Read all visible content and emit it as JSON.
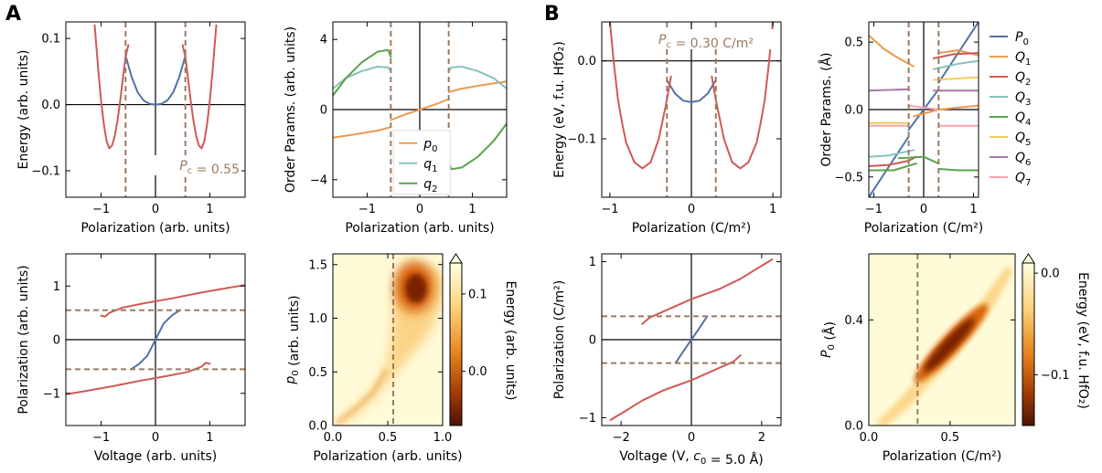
{
  "panel_letters": [
    "A",
    "B"
  ],
  "colors": {
    "blue": "#4f73a4",
    "red": "#cf5a55",
    "orange": "#ec9a4d",
    "teal": "#86c2bc",
    "green": "#5ba14e",
    "yellow": "#f4cd59",
    "purple": "#a879a6",
    "pink": "#f4a3ad",
    "dashed": "#9b7b63"
  },
  "chart_data": [
    {
      "id": "A1",
      "type": "line",
      "xlabel": "Polarization (arb. units)",
      "ylabel": "Energy (arb. units)",
      "xlim": [
        -1.65,
        1.65
      ],
      "ylim": [
        -0.14,
        0.125
      ],
      "xticks": [
        -1,
        0,
        1
      ],
      "xticklabels": [
        "−1",
        "0",
        "1"
      ],
      "yticks": [
        -0.1,
        0,
        0.1
      ],
      "yticklabels": [
        "−0.1",
        "0.0",
        "0.1"
      ],
      "vlines": [
        -0.55,
        0.55
      ],
      "hline": 0,
      "vline": 0,
      "annotation": "P_c = 0.55",
      "series": [
        {
          "color": "blue",
          "x": [
            -0.55,
            -0.44,
            -0.33,
            -0.22,
            -0.11,
            0,
            0.11,
            0.22,
            0.33,
            0.44,
            0.55
          ],
          "y": [
            0.074,
            0.042,
            0.019,
            0.0065,
            0.0012,
            0,
            0.0012,
            0.0065,
            0.019,
            0.042,
            0.074
          ]
        },
        {
          "color": "red",
          "x": [
            -1.12,
            -1.05,
            -1.0,
            -0.95,
            -0.9,
            -0.85,
            -0.8,
            -0.75,
            -0.7,
            -0.65,
            -0.6,
            -0.55,
            -0.5
          ],
          "y": [
            0.12,
            0.05,
            0.005,
            -0.03,
            -0.055,
            -0.066,
            -0.062,
            -0.047,
            -0.025,
            0.005,
            0.04,
            0.072,
            0.09
          ]
        },
        {
          "color": "red",
          "x": [
            0.5,
            0.55,
            0.6,
            0.65,
            0.7,
            0.75,
            0.8,
            0.85,
            0.9,
            0.95,
            1.0,
            1.05,
            1.12
          ],
          "y": [
            0.09,
            0.072,
            0.04,
            0.005,
            -0.025,
            -0.047,
            -0.062,
            -0.066,
            -0.055,
            -0.03,
            0.005,
            0.05,
            0.12
          ]
        }
      ]
    },
    {
      "id": "A2",
      "type": "line",
      "xlabel": "Polarization (arb. units)",
      "ylabel": "Order Params. (arb. units)",
      "xlim": [
        -1.65,
        1.65
      ],
      "ylim": [
        -5,
        5
      ],
      "xticks": [
        -1,
        0,
        1
      ],
      "xticklabels": [
        "−1",
        "0",
        "1"
      ],
      "yticks": [
        -4,
        0,
        4
      ],
      "yticklabels": [
        "−4",
        "0",
        "4"
      ],
      "vlines": [
        -0.55,
        0.55
      ],
      "hline": 0,
      "vline": 0,
      "legend": [
        {
          "label": "p_0",
          "color": "orange"
        },
        {
          "label": "q_1",
          "color": "teal"
        },
        {
          "label": "q_2",
          "color": "green"
        }
      ],
      "series": [
        {
          "color": "orange",
          "x": [
            -1.65,
            -1.2,
            -0.8,
            -0.55
          ],
          "y": [
            -1.6,
            -1.4,
            -1.2,
            -1.0
          ]
        },
        {
          "color": "orange",
          "x": [
            -0.55,
            -0.3,
            0,
            0.3,
            0.55
          ],
          "y": [
            -0.6,
            -0.3,
            0,
            0.3,
            0.6
          ]
        },
        {
          "color": "orange",
          "x": [
            0.55,
            0.8,
            1.2,
            1.65
          ],
          "y": [
            1.0,
            1.2,
            1.4,
            1.6
          ]
        },
        {
          "color": "teal",
          "x": [
            -1.65,
            -1.4,
            -1.1,
            -0.8,
            -0.6,
            -0.55
          ],
          "y": [
            1.2,
            1.8,
            2.2,
            2.45,
            2.4,
            2.2
          ]
        },
        {
          "color": "teal",
          "x": [
            0.55,
            0.6,
            0.8,
            1.1,
            1.4,
            1.65
          ],
          "y": [
            2.2,
            2.4,
            2.45,
            2.2,
            1.8,
            1.2
          ]
        },
        {
          "color": "green",
          "x": [
            -1.65,
            -1.4,
            -1.1,
            -0.8,
            -0.6,
            -0.55
          ],
          "y": [
            0.8,
            1.8,
            2.7,
            3.3,
            3.4,
            3.0
          ]
        },
        {
          "color": "green",
          "x": [
            0.55,
            0.6,
            0.8,
            1.1,
            1.4,
            1.65
          ],
          "y": [
            -3.0,
            -3.4,
            -3.3,
            -2.7,
            -1.8,
            -0.8
          ]
        }
      ]
    },
    {
      "id": "A3",
      "type": "line",
      "xlabel": "Voltage (arb. units)",
      "ylabel": "Polarization (arb. units)",
      "xlim": [
        -1.65,
        1.65
      ],
      "ylim": [
        -1.6,
        1.6
      ],
      "xticks": [
        -1,
        0,
        1
      ],
      "xticklabels": [
        "−1",
        "0",
        "1"
      ],
      "yticks": [
        -1,
        0,
        1
      ],
      "yticklabels": [
        "−1",
        "0",
        "1"
      ],
      "hlines": [
        -0.55,
        0.55
      ],
      "hline": 0,
      "vline": 0,
      "series": [
        {
          "color": "blue",
          "x": [
            -0.45,
            -0.3,
            -0.15,
            0,
            0.15,
            0.3,
            0.45
          ],
          "y": [
            -0.55,
            -0.45,
            -0.3,
            0,
            0.3,
            0.45,
            0.55
          ]
        },
        {
          "color": "red",
          "x": [
            -1.0,
            -0.93,
            -0.85,
            -0.6,
            -0.2,
            0.3,
            0.8,
            1.3,
            1.65
          ],
          "y": [
            0.45,
            0.43,
            0.5,
            0.6,
            0.68,
            0.77,
            0.87,
            0.96,
            1.02
          ]
        },
        {
          "color": "red",
          "x": [
            -1.65,
            -1.3,
            -0.8,
            -0.3,
            0.2,
            0.6,
            0.85,
            0.93,
            1.0
          ],
          "y": [
            -1.02,
            -0.96,
            -0.87,
            -0.77,
            -0.68,
            -0.6,
            -0.5,
            -0.43,
            -0.45
          ]
        }
      ]
    },
    {
      "id": "A4",
      "type": "heatmap",
      "xlabel": "Polarization (arb. units)",
      "ylabel": "p_0 (arb. units)",
      "xlim": [
        0,
        1
      ],
      "ylim": [
        0,
        1.6
      ],
      "xticks": [
        0,
        0.5,
        1
      ],
      "xticklabels": [
        "0.0",
        "0.5",
        "1.0"
      ],
      "yticks": [
        0,
        0.5,
        1.0,
        1.5
      ],
      "yticklabels": [
        "0.0",
        "0.5",
        "1.0",
        "1.5"
      ],
      "vlines": [
        0.55
      ],
      "colorbar_label": "Energy (arb. units)",
      "colorbar_ticks": [
        0.1,
        0.0
      ],
      "colorbar_ticklabels": [
        "0.1",
        "0.0"
      ],
      "colorbar_range": [
        -0.07,
        0.14
      ]
    },
    {
      "id": "B1",
      "type": "line",
      "xlabel": "Polarization (C/m²)",
      "ylabel": "Energy (eV, f.u. HfO₂)",
      "xlim": [
        -1.1,
        1.1
      ],
      "ylim": [
        -0.175,
        0.05
      ],
      "xticks": [
        -1,
        0,
        1
      ],
      "xticklabels": [
        "−1",
        "0",
        "1"
      ],
      "yticks": [
        -0.1,
        0.0
      ],
      "yticklabels": [
        "−0.1",
        "0.0"
      ],
      "vlines": [
        -0.3,
        0.3
      ],
      "hline": 0,
      "vline": 0,
      "annotation": "P_c = 0.30 C/m²",
      "series": [
        {
          "color": "blue",
          "x": [
            -0.3,
            -0.2,
            -0.1,
            0,
            0.1,
            0.2,
            0.3
          ],
          "y": [
            -0.025,
            -0.042,
            -0.051,
            -0.053,
            -0.051,
            -0.042,
            -0.025
          ]
        },
        {
          "color": "red",
          "x": [
            -1.0,
            -0.95,
            -0.9,
            -0.85,
            -0.8,
            -0.7,
            -0.6,
            -0.5,
            -0.4,
            -0.3,
            -0.25
          ],
          "y": [
            0.05,
            -0.005,
            -0.05,
            -0.08,
            -0.105,
            -0.13,
            -0.138,
            -0.13,
            -0.1,
            -0.05,
            -0.02
          ]
        },
        {
          "color": "red",
          "x": [
            0.25,
            0.3,
            0.4,
            0.5,
            0.6,
            0.7,
            0.8,
            0.85,
            0.9,
            0.95,
            1.0
          ],
          "y": [
            -0.02,
            -0.05,
            -0.1,
            -0.13,
            -0.138,
            -0.13,
            -0.105,
            -0.08,
            -0.05,
            -0.005,
            0.05
          ]
        }
      ]
    },
    {
      "id": "B2",
      "type": "line",
      "xlabel": "Polarization (C/m²)",
      "ylabel": "Order Params. (Å)",
      "xlim": [
        -1.1,
        1.1
      ],
      "ylim": [
        -0.65,
        0.65
      ],
      "xticks": [
        -1,
        0,
        1
      ],
      "xticklabels": [
        "−1",
        "0",
        "1"
      ],
      "yticks": [
        -0.5,
        0.0,
        0.5
      ],
      "yticklabels": [
        "−0.5",
        "0.0",
        "0.5"
      ],
      "vlines": [
        -0.3,
        0.3
      ],
      "hline": 0,
      "vline": 0,
      "legend": [
        {
          "label": "P_0",
          "color": "blue"
        },
        {
          "label": "Q_1",
          "color": "orange"
        },
        {
          "label": "Q_2",
          "color": "red"
        },
        {
          "label": "Q_3",
          "color": "teal"
        },
        {
          "label": "Q_4",
          "color": "green"
        },
        {
          "label": "Q_5",
          "color": "yellow"
        },
        {
          "label": "Q_6",
          "color": "purple"
        },
        {
          "label": "Q_7",
          "color": "pink"
        }
      ],
      "series": [
        {
          "color": "blue",
          "x": [
            -1.1,
            -0.3
          ],
          "y": [
            -0.65,
            -0.2
          ]
        },
        {
          "color": "blue",
          "x": [
            -0.3,
            0,
            0.3
          ],
          "y": [
            -0.15,
            0,
            0.15
          ]
        },
        {
          "color": "blue",
          "x": [
            0.3,
            1.1
          ],
          "y": [
            0.2,
            0.65
          ]
        },
        {
          "color": "orange",
          "x": [
            -1.1,
            -0.8,
            -0.5,
            -0.2
          ],
          "y": [
            0.55,
            0.45,
            0.38,
            0.32
          ]
        },
        {
          "color": "orange",
          "x": [
            -0.2,
            0.3,
            1.1
          ],
          "y": [
            -0.05,
            0.0,
            0.03
          ]
        },
        {
          "color": "orange",
          "x": [
            0.3,
            0.7,
            1.1
          ],
          "y": [
            0.42,
            0.44,
            0.4
          ]
        },
        {
          "color": "red",
          "x": [
            -1.1,
            -0.7,
            -0.3,
            -0.15
          ],
          "y": [
            -0.42,
            -0.41,
            -0.38,
            -0.35
          ]
        },
        {
          "color": "red",
          "x": [
            0.2,
            0.6,
            1.1
          ],
          "y": [
            0.38,
            0.41,
            0.42
          ]
        },
        {
          "color": "teal",
          "x": [
            -1.1,
            -0.7,
            -0.2
          ],
          "y": [
            -0.35,
            -0.34,
            -0.3
          ]
        },
        {
          "color": "teal",
          "x": [
            0.2,
            0.7,
            1.1
          ],
          "y": [
            0.3,
            0.34,
            0.36
          ]
        },
        {
          "color": "green",
          "x": [
            -1.1,
            -0.6,
            -0.15
          ],
          "y": [
            -0.45,
            -0.45,
            -0.4
          ]
        },
        {
          "color": "green",
          "x": [
            -0.5,
            0,
            0.3
          ],
          "y": [
            -0.36,
            -0.35,
            -0.4
          ]
        },
        {
          "color": "green",
          "x": [
            0.3,
            0.7,
            1.1
          ],
          "y": [
            -0.44,
            -0.45,
            -0.45
          ]
        },
        {
          "color": "yellow",
          "x": [
            -1.1,
            -0.3
          ],
          "y": [
            -0.1,
            -0.1
          ]
        },
        {
          "color": "yellow",
          "x": [
            0.2,
            1.1
          ],
          "y": [
            0.22,
            0.24
          ]
        },
        {
          "color": "purple",
          "x": [
            -1.1,
            -0.3
          ],
          "y": [
            0.14,
            0.15
          ]
        },
        {
          "color": "purple",
          "x": [
            0.2,
            1.1
          ],
          "y": [
            0.14,
            0.14
          ]
        },
        {
          "color": "pink",
          "x": [
            -1.1,
            -0.3
          ],
          "y": [
            -0.12,
            -0.12
          ]
        },
        {
          "color": "pink",
          "x": [
            -0.3,
            0.3
          ],
          "y": [
            0.03,
            0.0
          ]
        },
        {
          "color": "pink",
          "x": [
            0.3,
            1.1
          ],
          "y": [
            -0.12,
            -0.12
          ]
        }
      ]
    },
    {
      "id": "B3",
      "type": "line",
      "xlabel": "Voltage (V, c_0 = 5.0 Å)",
      "ylabel": "Polarization (C/m²)",
      "xlim": [
        -2.55,
        2.55
      ],
      "ylim": [
        -1.1,
        1.1
      ],
      "xticks": [
        -2,
        0,
        2
      ],
      "xticklabels": [
        "−2",
        "0",
        "2"
      ],
      "yticks": [
        -1,
        0,
        1
      ],
      "yticklabels": [
        "−1",
        "0",
        "1"
      ],
      "hlines": [
        -0.3,
        0.3
      ],
      "hline": 0,
      "vline": 0,
      "series": [
        {
          "color": "blue",
          "x": [
            -0.45,
            -0.2,
            0,
            0.2,
            0.45
          ],
          "y": [
            -0.3,
            -0.13,
            0,
            0.13,
            0.3
          ]
        },
        {
          "color": "red",
          "x": [
            -1.4,
            -1.2,
            -0.6,
            0,
            0.8,
            1.4,
            1.9,
            2.2,
            2.3
          ],
          "y": [
            0.2,
            0.28,
            0.4,
            0.52,
            0.65,
            0.78,
            0.92,
            1.0,
            1.03
          ]
        },
        {
          "color": "red",
          "x": [
            -2.3,
            -2.2,
            -1.9,
            -1.4,
            -0.8,
            0,
            0.6,
            1.2,
            1.4
          ],
          "y": [
            -1.03,
            -1.0,
            -0.92,
            -0.78,
            -0.65,
            -0.52,
            -0.4,
            -0.28,
            -0.2
          ]
        }
      ]
    },
    {
      "id": "B4",
      "type": "heatmap",
      "xlabel": "Polarization (C/m²)",
      "ylabel": "P_0 (Å)",
      "xlim": [
        0,
        0.9
      ],
      "ylim": [
        0,
        0.65
      ],
      "xticks": [
        0,
        0.5
      ],
      "xticklabels": [
        "0.0",
        "0.5"
      ],
      "yticks": [
        0,
        0.4
      ],
      "yticklabels": [
        "0.0",
        "0.4"
      ],
      "vlines": [
        0.3
      ],
      "colorbar_label": "Energy (eV, f.u. HfO₂)",
      "colorbar_ticks": [
        0.0,
        -0.1
      ],
      "colorbar_ticklabels": [
        "0.0",
        "−0.1"
      ],
      "colorbar_range": [
        -0.15,
        0.01
      ]
    }
  ]
}
